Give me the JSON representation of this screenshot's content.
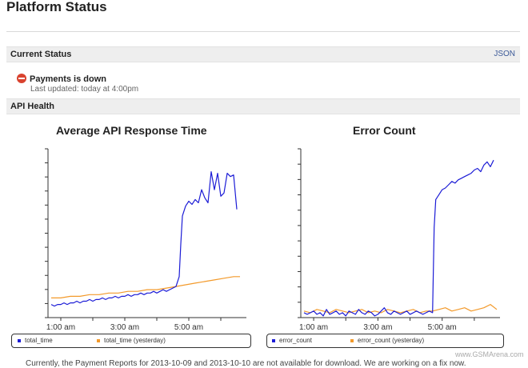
{
  "page": {
    "title": "Platform Status"
  },
  "current_status": {
    "header": "Current Status",
    "json_link": "JSON",
    "message": "Payments is down",
    "last_updated": "Last updated: today at 4:00pm",
    "status_color": "#d9432f"
  },
  "api_health": {
    "header": "API Health"
  },
  "colors": {
    "primary_series": "#1c1cd6",
    "yesterday_series": "#f39a2b"
  },
  "footer": {
    "text": "Currently, the Payment Reports for 2013-10-09 and 2013-10-10 are not available for download. We are working on a fix now."
  },
  "watermark": "www.GSMArena.com",
  "chart_data": [
    {
      "type": "line",
      "title": "Average API Response Time",
      "x_tick_labels": [
        "1:00 am",
        "3:00 am",
        "5:00 am"
      ],
      "x_tick_hours": [
        1,
        3,
        5
      ],
      "xlim": [
        0.6,
        6.8
      ],
      "ylim": [
        0,
        10
      ],
      "grid": false,
      "legend": "bottom",
      "series": [
        {
          "name": "total_time",
          "color": "#1c1cd6",
          "x": [
            0.7,
            0.8,
            0.9,
            1.0,
            1.1,
            1.2,
            1.3,
            1.4,
            1.5,
            1.6,
            1.7,
            1.8,
            1.9,
            2.0,
            2.1,
            2.2,
            2.3,
            2.4,
            2.5,
            2.6,
            2.7,
            2.8,
            2.9,
            3.0,
            3.1,
            3.2,
            3.3,
            3.4,
            3.5,
            3.6,
            3.7,
            3.8,
            3.9,
            4.0,
            4.1,
            4.2,
            4.3,
            4.4,
            4.5,
            4.6,
            4.7,
            4.75,
            4.8,
            4.9,
            5.0,
            5.1,
            5.2,
            5.3,
            5.4,
            5.5,
            5.6,
            5.7,
            5.8,
            5.9,
            6.0,
            6.1,
            6.2,
            6.3,
            6.4,
            6.5
          ],
          "y": [
            0.8,
            0.7,
            0.8,
            0.8,
            0.9,
            0.8,
            0.9,
            0.9,
            1.0,
            0.9,
            1.0,
            1.0,
            1.1,
            1.0,
            1.1,
            1.1,
            1.2,
            1.1,
            1.2,
            1.2,
            1.3,
            1.2,
            1.3,
            1.3,
            1.4,
            1.3,
            1.4,
            1.4,
            1.5,
            1.4,
            1.5,
            1.5,
            1.6,
            1.5,
            1.6,
            1.7,
            1.6,
            1.7,
            1.8,
            1.9,
            2.5,
            4.5,
            6.2,
            6.8,
            7.1,
            6.9,
            7.2,
            7.0,
            7.8,
            7.3,
            7.0,
            8.9,
            7.8,
            8.8,
            7.4,
            7.6,
            8.8,
            8.6,
            8.7,
            6.6
          ]
        },
        {
          "name": "total_time (yesterday)",
          "color": "#f39a2b",
          "x": [
            0.7,
            1.0,
            1.3,
            1.6,
            1.9,
            2.2,
            2.5,
            2.8,
            3.1,
            3.4,
            3.7,
            4.0,
            4.3,
            4.6,
            4.9,
            5.2,
            5.5,
            5.8,
            6.1,
            6.4,
            6.6
          ],
          "y": [
            1.2,
            1.2,
            1.3,
            1.3,
            1.4,
            1.4,
            1.5,
            1.5,
            1.6,
            1.6,
            1.7,
            1.7,
            1.8,
            1.9,
            2.0,
            2.1,
            2.2,
            2.3,
            2.4,
            2.5,
            2.5
          ]
        }
      ]
    },
    {
      "type": "line",
      "title": "Error Count",
      "x_tick_labels": [
        "1:00 am",
        "3:00 am",
        "5:00 am"
      ],
      "x_tick_hours": [
        1,
        3,
        5
      ],
      "xlim": [
        0.6,
        6.8
      ],
      "ylim": [
        0,
        10
      ],
      "grid": false,
      "legend": "bottom",
      "series": [
        {
          "name": "error_count",
          "color": "#1c1cd6",
          "x": [
            0.7,
            0.8,
            0.9,
            1.0,
            1.1,
            1.2,
            1.3,
            1.4,
            1.5,
            1.6,
            1.7,
            1.8,
            1.9,
            2.0,
            2.1,
            2.2,
            2.3,
            2.4,
            2.5,
            2.6,
            2.7,
            2.8,
            2.9,
            3.0,
            3.1,
            3.2,
            3.3,
            3.4,
            3.5,
            3.6,
            3.7,
            3.8,
            3.9,
            4.0,
            4.1,
            4.2,
            4.3,
            4.4,
            4.5,
            4.6,
            4.7,
            4.75,
            4.8,
            4.9,
            5.0,
            5.1,
            5.2,
            5.3,
            5.4,
            5.5,
            5.6,
            5.7,
            5.8,
            5.9,
            6.0,
            6.1,
            6.2,
            6.3,
            6.4,
            6.5,
            6.6
          ],
          "y": [
            0.3,
            0.2,
            0.3,
            0.4,
            0.2,
            0.3,
            0.1,
            0.5,
            0.2,
            0.3,
            0.4,
            0.2,
            0.3,
            0.1,
            0.4,
            0.3,
            0.2,
            0.5,
            0.3,
            0.2,
            0.4,
            0.3,
            0.1,
            0.2,
            0.4,
            0.6,
            0.3,
            0.2,
            0.4,
            0.3,
            0.2,
            0.3,
            0.4,
            0.2,
            0.3,
            0.4,
            0.3,
            0.2,
            0.3,
            0.4,
            0.3,
            5.5,
            7.2,
            7.5,
            7.8,
            7.9,
            8.1,
            8.3,
            8.2,
            8.4,
            8.5,
            8.6,
            8.7,
            8.8,
            9.0,
            9.1,
            8.9,
            9.3,
            9.5,
            9.2,
            9.6
          ]
        },
        {
          "name": "error_count (yesterday)",
          "color": "#f39a2b",
          "x": [
            0.7,
            0.9,
            1.1,
            1.3,
            1.5,
            1.7,
            1.9,
            2.1,
            2.3,
            2.5,
            2.7,
            2.9,
            3.1,
            3.3,
            3.5,
            3.7,
            3.9,
            4.1,
            4.3,
            4.5,
            4.7,
            4.9,
            5.1,
            5.3,
            5.5,
            5.7,
            5.9,
            6.1,
            6.3,
            6.5,
            6.7
          ],
          "y": [
            0.4,
            0.3,
            0.5,
            0.4,
            0.3,
            0.5,
            0.4,
            0.3,
            0.4,
            0.5,
            0.3,
            0.4,
            0.3,
            0.5,
            0.4,
            0.3,
            0.4,
            0.5,
            0.3,
            0.4,
            0.4,
            0.5,
            0.6,
            0.4,
            0.5,
            0.6,
            0.4,
            0.5,
            0.6,
            0.8,
            0.5
          ]
        }
      ]
    }
  ]
}
